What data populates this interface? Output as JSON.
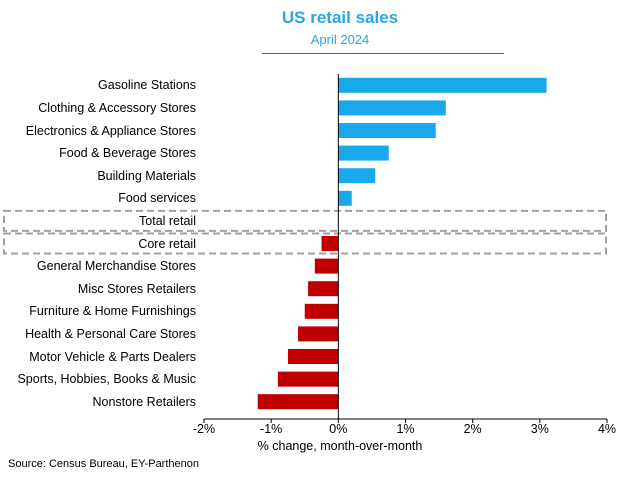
{
  "chart_data": {
    "type": "bar",
    "orientation": "horizontal",
    "title": "US retail sales",
    "subtitle": "April 2024",
    "categories": [
      "Gasoline Stations",
      "Clothing & Accessory Stores",
      "Electronics & Appliance Stores",
      "Food & Beverage Stores",
      "Building Materials",
      "Food services",
      "Total retail",
      "Core retail",
      "General Merchandise Stores",
      "Misc Stores Retailers",
      "Furniture & Home Furnishings",
      "Health & Personal Care Stores",
      "Motor Vehicle & Parts Dealers",
      "Sports, Hobbies, Books & Music",
      "Nonstore Retailers"
    ],
    "values": [
      3.1,
      1.6,
      1.45,
      0.75,
      0.55,
      0.2,
      0.0,
      -0.25,
      -0.35,
      -0.45,
      -0.5,
      -0.6,
      -0.75,
      -0.9,
      -1.2
    ],
    "highlighted": [
      "Total retail",
      "Core retail"
    ],
    "xlabel": "% change, month-over-month",
    "xlim": [
      -2,
      4
    ],
    "xticks": [
      "-2%",
      "-1%",
      "0%",
      "1%",
      "2%",
      "3%",
      "4%"
    ],
    "colors": {
      "positive": "#19a8ec",
      "negative": "#c00000",
      "title": "#2aa5e8"
    },
    "source": "Source: Census Bureau, EY-Parthenon"
  }
}
